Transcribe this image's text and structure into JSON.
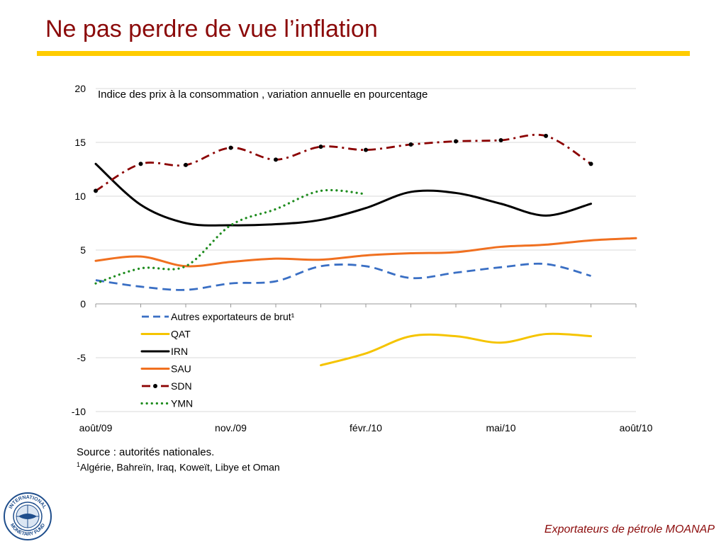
{
  "slide": {
    "title": "Ne pas perdre de vue l’inflation",
    "source": "Source : autorités nationales.",
    "footnote_mark": "1",
    "footnote": "Algérie, Bahreïn, Iraq, Koweït, Libye et Oman",
    "footer": "Exportateurs de pétrole MOANAP",
    "logo_text_top": "INTERNATIONAL",
    "logo_text_bottom": "MONETARY FUND"
  },
  "colors": {
    "title": "#8b0a0a",
    "rule": "#ffcc00",
    "autres": "#3a6fc4",
    "qat": "#f5c400",
    "irn": "#000000",
    "sau": "#f07020",
    "sdn": "#8b0000",
    "ymn": "#1e8c1e",
    "grid": "#d9d9d9"
  },
  "chart_data": {
    "type": "line",
    "title": "Indice des prix à la consommation , variation annuelle en pourcentage",
    "xlabel": "",
    "ylabel": "",
    "ylim": [
      -10,
      20
    ],
    "yticks": [
      -10,
      -5,
      0,
      5,
      10,
      15,
      20
    ],
    "xlim": [
      0,
      12
    ],
    "xticks": [
      {
        "x": 0,
        "label": "août/09"
      },
      {
        "x": 3,
        "label": "nov./09"
      },
      {
        "x": 6,
        "label": "févr./10"
      },
      {
        "x": 9,
        "label": "mai/10"
      },
      {
        "x": 12,
        "label": "août/10"
      }
    ],
    "grid": true,
    "legend_position": "lower-left",
    "series": [
      {
        "key": "autres",
        "name": "Autres exportateurs de brut¹",
        "style": "dashed",
        "x": [
          0,
          1,
          2,
          3,
          4,
          5,
          6,
          7,
          8,
          9,
          10,
          11
        ],
        "values": [
          2.2,
          1.6,
          1.3,
          1.9,
          2.1,
          3.5,
          3.5,
          2.4,
          2.9,
          3.4,
          3.7,
          2.6
        ]
      },
      {
        "key": "qat",
        "name": "QAT",
        "style": "solid",
        "x": [
          5,
          6,
          7,
          8,
          9,
          10,
          11
        ],
        "values": [
          -5.7,
          -4.6,
          -3.0,
          -3.0,
          -3.6,
          -2.8,
          -3.0
        ]
      },
      {
        "key": "irn",
        "name": "IRN",
        "style": "solid",
        "x": [
          0,
          1,
          2,
          3,
          4,
          5,
          6,
          7,
          8,
          9,
          10,
          11
        ],
        "values": [
          13.0,
          9.2,
          7.5,
          7.3,
          7.4,
          7.8,
          8.9,
          10.4,
          10.3,
          9.3,
          8.2,
          9.3
        ]
      },
      {
        "key": "sau",
        "name": "SAU",
        "style": "solid",
        "x": [
          0,
          1,
          2,
          3,
          4,
          5,
          6,
          7,
          8,
          9,
          10,
          11,
          12
        ],
        "values": [
          4.0,
          4.4,
          3.5,
          3.9,
          4.2,
          4.1,
          4.5,
          4.7,
          4.8,
          5.3,
          5.5,
          5.9,
          6.1
        ]
      },
      {
        "key": "sdn",
        "name": "SDN",
        "style": "dashdot-markers",
        "x": [
          0,
          1,
          2,
          3,
          4,
          5,
          6,
          7,
          8,
          9,
          10,
          11
        ],
        "values": [
          10.5,
          13.0,
          12.9,
          14.5,
          13.4,
          14.6,
          14.3,
          14.8,
          15.1,
          15.2,
          15.6,
          13.0
        ]
      },
      {
        "key": "ymn",
        "name": "YMN",
        "style": "dotted",
        "x": [
          0,
          1,
          2,
          3,
          4,
          5,
          6
        ],
        "values": [
          1.9,
          3.3,
          3.5,
          7.3,
          8.8,
          10.5,
          10.2
        ]
      }
    ]
  }
}
